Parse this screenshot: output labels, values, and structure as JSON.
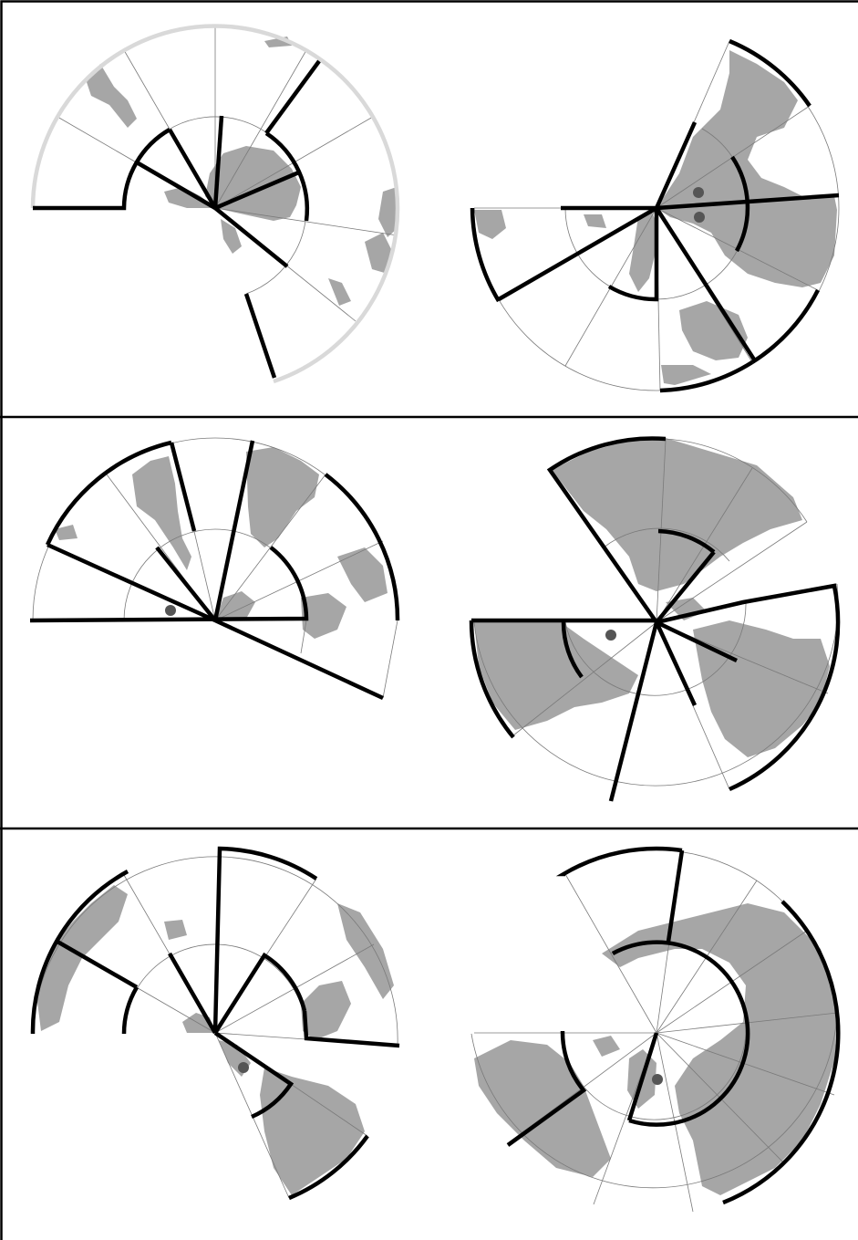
{
  "puzzle": {
    "rows": 3,
    "columns": 2,
    "panels": [
      {
        "row": 1,
        "col": 1,
        "kind": "polar-maze",
        "land": "south-pacific-view",
        "markers": 0
      },
      {
        "row": 1,
        "col": 2,
        "kind": "polar-maze",
        "land": "north-atlantic-view",
        "markers": 2
      },
      {
        "row": 2,
        "col": 1,
        "kind": "polar-maze",
        "land": "south-america-view",
        "markers": 1
      },
      {
        "row": 2,
        "col": 2,
        "kind": "polar-maze",
        "land": "eurasia-view",
        "markers": 1
      },
      {
        "row": 3,
        "col": 1,
        "kind": "polar-maze",
        "land": "indian-ocean-view",
        "markers": 1
      },
      {
        "row": 3,
        "col": 2,
        "kind": "polar-maze",
        "land": "arctic-view",
        "markers": 1
      }
    ]
  },
  "colors": {
    "land": "#a6a6a6",
    "walls": "#000000",
    "grid": "#7a7a7a",
    "marker": "#555555",
    "faint_rim": "#d9d9d9"
  }
}
